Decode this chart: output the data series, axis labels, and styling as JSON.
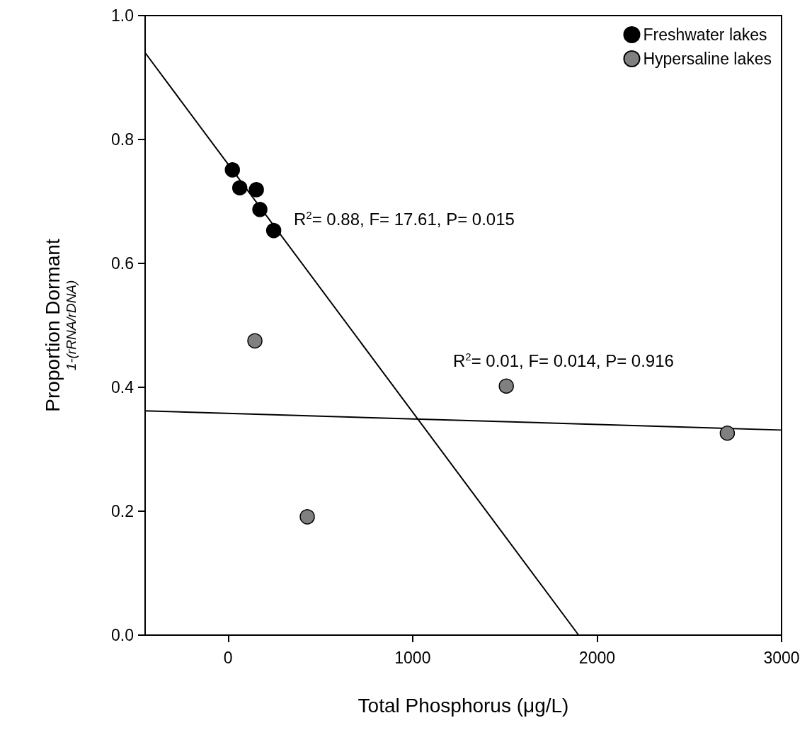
{
  "chart_data": {
    "type": "scatter",
    "xlabel": "Total Phosphorus (μg/L)",
    "ylabel": "Proportion Dormant\n1-(rRNA/rDNA)",
    "xlim": [
      -450,
      3000
    ],
    "xticks": [
      0,
      1000,
      2000,
      3000
    ],
    "ylim": [
      0,
      1
    ],
    "yticks": [
      {
        "value": 0,
        "label": "0.0"
      },
      {
        "value": 0.2,
        "label": "0.2"
      },
      {
        "value": 0.4,
        "label": "0.4"
      },
      {
        "value": 0.6,
        "label": "0.6"
      },
      {
        "value": 0.8,
        "label": "0.8"
      },
      {
        "value": 1,
        "label": "1.0"
      }
    ],
    "grid": false,
    "legend": "top right",
    "marker": "circle",
    "series": [
      {
        "name": "Freshwater lakes",
        "color": "#000000",
        "x": [
          23,
          63,
          153,
          172,
          247
        ],
        "values": [
          0.751,
          0.722,
          0.719,
          0.687,
          0.653
        ]
      },
      {
        "name": "Hypersaline lakes",
        "color": "#808080",
        "x": [
          145,
          429,
          1508,
          2706
        ],
        "values": [
          0.475,
          0.191,
          0.402,
          0.326
        ]
      },
      {
        "type": "line",
        "color": "#000000",
        "marker": "none",
        "line_style": "solid",
        "x": [
          -450,
          1900
        ],
        "values": [
          0.94,
          0
        ]
      },
      {
        "type": "line",
        "color": "#000000",
        "marker": "none",
        "line_style": "solid",
        "x": [
          -450,
          3000
        ],
        "values": [
          0.362,
          0.331
        ]
      }
    ],
    "annotations": [
      "R$^{2}$= 0.88, F= 17.61, P= 0.015",
      "R$^{2}$= 0.01, F= 0.014, P= 0.916"
    ]
  }
}
